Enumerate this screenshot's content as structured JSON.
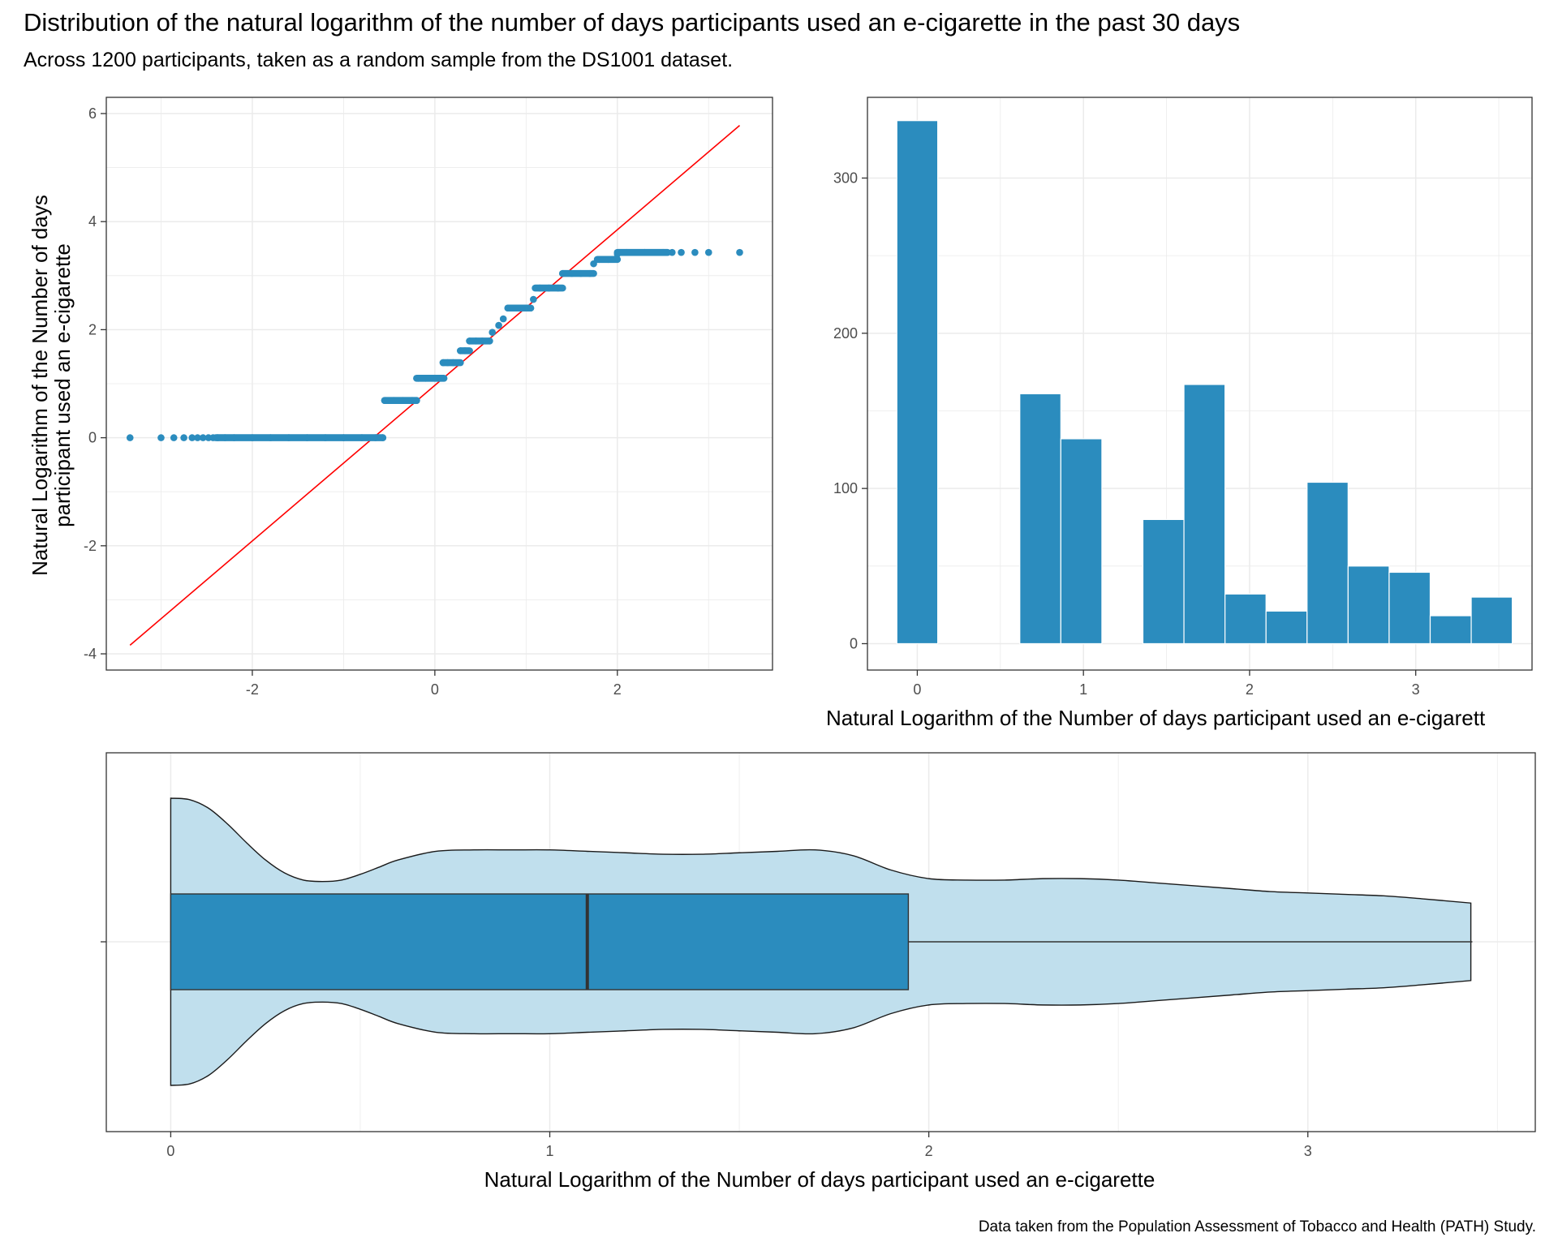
{
  "title": "Distribution of the natural logarithm of the number of days participants used an e-cigarette in the past 30 days",
  "subtitle": "Across 1200 participants, taken as a random sample from the DS1001 dataset.",
  "caption": "Data taken from the Population Assessment of Tobacco and Health (PATH) Study.",
  "colors": {
    "fill": "#2b8cbe",
    "violin_fill": "#c0dfed",
    "qq_line": "#ff0000",
    "grid": "#ebebeb",
    "panel_border": "#333333"
  },
  "chart_data": [
    {
      "type": "scatter",
      "subtype": "qq-plot",
      "xlabel": "",
      "ylabel_lines": [
        "Natural Logarithm of the Number of days",
        "participant used an e-cigarette"
      ],
      "xlim": [
        -3.6,
        3.7
      ],
      "ylim": [
        -4.3,
        6.3
      ],
      "x_ticks": [
        -2,
        0,
        2
      ],
      "y_ticks": [
        -4,
        -2,
        0,
        2,
        4,
        6
      ],
      "grid": true,
      "reference_line": {
        "x": [
          -3.34,
          3.34
        ],
        "y": [
          -3.84,
          5.78
        ]
      },
      "series": [
        {
          "x": [
            -3.34,
            -3.0,
            -2.86,
            -2.75,
            -2.66,
            -2.6,
            -2.54,
            -2.48,
            -2.43,
            -2.38,
            -2.3,
            -2.2,
            -2.0,
            -1.8,
            -1.6,
            -1.4,
            -1.2,
            -1.0,
            -0.8,
            -0.65,
            -0.57
          ],
          "y": [
            0,
            0,
            0,
            0,
            0,
            0,
            0,
            0,
            0,
            0,
            0,
            0,
            0,
            0,
            0,
            0,
            0,
            0,
            0,
            0,
            0
          ]
        },
        {
          "x": [
            -0.55,
            -0.45,
            -0.35,
            -0.25,
            -0.2,
            -0.18,
            -0.1,
            0.0,
            0.05,
            0.09,
            0.14,
            0.2,
            0.28,
            0.33,
            0.38,
            0.45,
            0.52,
            0.6,
            0.63,
            0.7,
            0.75,
            0.8,
            0.85,
            0.95,
            1.05,
            1.08,
            1.15,
            1.25,
            1.35,
            1.4,
            1.5,
            1.6,
            1.7,
            1.74,
            1.8,
            1.9,
            2.0,
            2.1,
            2.3,
            2.5,
            2.6,
            2.7,
            2.85,
            3.0,
            3.34
          ],
          "y": [
            0.69,
            0.69,
            0.69,
            0.69,
            0.69,
            1.1,
            1.1,
            1.1,
            1.1,
            1.39,
            1.39,
            1.39,
            1.61,
            1.61,
            1.79,
            1.79,
            1.79,
            1.79,
            1.95,
            2.08,
            2.2,
            2.4,
            2.4,
            2.4,
            2.4,
            2.56,
            2.77,
            2.77,
            2.77,
            3.04,
            3.04,
            3.04,
            3.04,
            3.22,
            3.3,
            3.3,
            3.4,
            3.43,
            3.43,
            3.43,
            3.43,
            3.43,
            3.43,
            3.43,
            3.43
          ]
        }
      ]
    },
    {
      "type": "bar",
      "subtype": "histogram",
      "xlabel": "Natural Logarithm of the Number of days participant used an e-cigarett",
      "ylabel": "",
      "xlim": [
        -0.3,
        3.7
      ],
      "ylim": [
        -17,
        352
      ],
      "x_ticks": [
        0,
        1,
        2,
        3
      ],
      "y_ticks": [
        0,
        100,
        200,
        300
      ],
      "grid": true,
      "bins": [
        {
          "x0": -0.123,
          "x1": 0.123,
          "value": 337
        },
        {
          "x0": 0.617,
          "x1": 0.864,
          "value": 161
        },
        {
          "x0": 0.864,
          "x1": 1.111,
          "value": 132
        },
        {
          "x0": 1.358,
          "x1": 1.605,
          "value": 80
        },
        {
          "x0": 1.605,
          "x1": 1.852,
          "value": 167
        },
        {
          "x0": 1.852,
          "x1": 2.099,
          "value": 32
        },
        {
          "x0": 2.099,
          "x1": 2.346,
          "value": 21
        },
        {
          "x0": 2.346,
          "x1": 2.593,
          "value": 104
        },
        {
          "x0": 2.593,
          "x1": 2.84,
          "value": 50
        },
        {
          "x0": 2.84,
          "x1": 3.087,
          "value": 46
        },
        {
          "x0": 3.087,
          "x1": 3.334,
          "value": 18
        },
        {
          "x0": 3.334,
          "x1": 3.581,
          "value": 30
        }
      ]
    },
    {
      "type": "violin",
      "subtype": "violin-with-boxplot",
      "xlabel": "Natural Logarithm of the Number of days participant used an e-cigarette",
      "ylabel": "",
      "xlim": [
        -0.17,
        3.6
      ],
      "x_ticks": [
        0,
        1,
        2,
        3
      ],
      "grid": true,
      "density": {
        "x": [
          0,
          0.05,
          0.1,
          0.15,
          0.2,
          0.25,
          0.3,
          0.35,
          0.4,
          0.45,
          0.5,
          0.55,
          0.6,
          0.7,
          0.8,
          0.9,
          1.0,
          1.1,
          1.2,
          1.3,
          1.4,
          1.5,
          1.6,
          1.7,
          1.8,
          1.9,
          2.0,
          2.1,
          2.2,
          2.3,
          2.4,
          2.5,
          2.6,
          2.7,
          2.8,
          2.9,
          3.0,
          3.1,
          3.2,
          3.3,
          3.43
        ],
        "half_width": [
          1.0,
          0.99,
          0.93,
          0.82,
          0.69,
          0.57,
          0.48,
          0.43,
          0.42,
          0.43,
          0.47,
          0.52,
          0.57,
          0.63,
          0.64,
          0.64,
          0.64,
          0.63,
          0.62,
          0.61,
          0.61,
          0.62,
          0.63,
          0.64,
          0.6,
          0.5,
          0.44,
          0.43,
          0.43,
          0.44,
          0.44,
          0.43,
          0.41,
          0.39,
          0.37,
          0.35,
          0.34,
          0.33,
          0.32,
          0.3,
          0.27
        ]
      },
      "box": {
        "min": 0,
        "q1": 0,
        "median": 1.099,
        "q3": 1.946,
        "max": 3.434
      }
    }
  ]
}
